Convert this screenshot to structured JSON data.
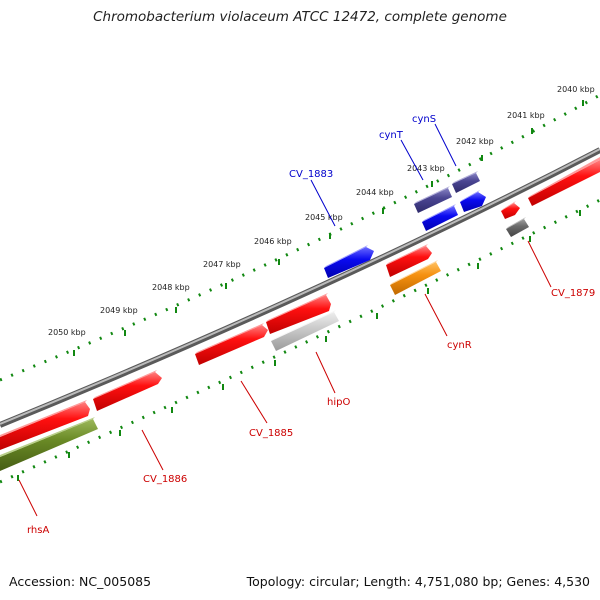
{
  "title": "Chromobacterium violaceum ATCC 12472, complete genome",
  "accession": "Accession: NC_005085",
  "topology": "Topology: circular; Length: 4,751,080 bp; Genes: 4,530",
  "kbp_ticks": [
    "2040 kbp",
    "2041 kbp",
    "2042 kbp",
    "2043 kbp",
    "2044 kbp",
    "2045 kbp",
    "2046 kbp",
    "2047 kbp",
    "2048 kbp",
    "2049 kbp",
    "2050 kbp"
  ],
  "colors": {
    "forward_blue": "#0000ee",
    "dark_blue": "#443f8c",
    "red_gene": "#ee0000",
    "grey_gene": "#6a6a6a",
    "light_grey_gene": "#c8c8c8",
    "orange_gene": "#f28c00",
    "olive_gene": "#5f7d1e",
    "backbone": "#888888",
    "tick_green": "#118811"
  },
  "gene_labels": {
    "cynS": "cynS",
    "cynT": "cynT",
    "cv1883": "CV_1883",
    "cv1879": "CV_1879",
    "cynR": "cynR",
    "hipO": "hipO",
    "cv1885": "CV_1885",
    "cv1886": "CV_1886",
    "rhsA": "rhsA"
  }
}
